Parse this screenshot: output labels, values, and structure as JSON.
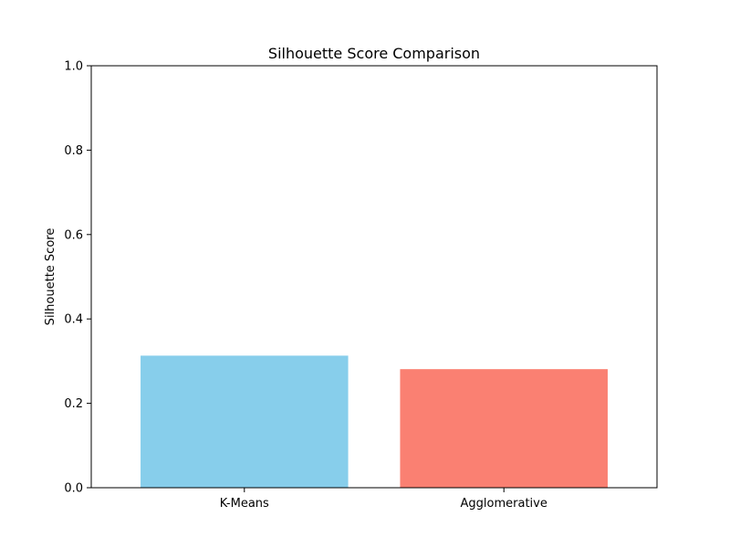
{
  "colors": {
    "k_means": "#87ceeb",
    "agglomerative": "#fa8072",
    "axis": "#000000",
    "background": "#ffffff"
  },
  "chart_data": {
    "type": "bar",
    "title": "Silhouette Score Comparison",
    "xlabel": "",
    "ylabel": "Silhouette Score",
    "categories": [
      "K-Means",
      "Agglomerative"
    ],
    "values": [
      0.313,
      0.281
    ],
    "bar_colors": [
      "#87ceeb",
      "#fa8072"
    ],
    "ylim": [
      0,
      1
    ],
    "yticks": [
      0.0,
      0.2,
      0.4,
      0.6,
      0.8,
      1.0
    ],
    "ytick_labels": [
      "0.0",
      "0.2",
      "0.4",
      "0.6",
      "0.8",
      "1.0"
    ],
    "grid": false,
    "legend": false
  }
}
